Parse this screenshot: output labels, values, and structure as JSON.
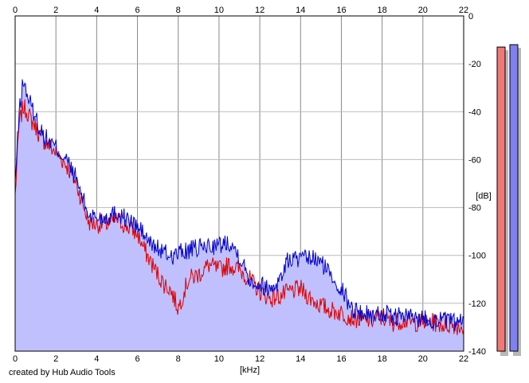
{
  "footer": {
    "credit": "created by Hub Audio Tools"
  },
  "chart_data": {
    "type": "area",
    "xlabel": "[kHz]",
    "ylabel": "[dB]",
    "xlim": [
      0,
      22
    ],
    "ylim": [
      -140,
      0
    ],
    "x_ticks": [
      0,
      2,
      4,
      6,
      8,
      10,
      12,
      14,
      16,
      18,
      20,
      22
    ],
    "y_ticks": [
      0,
      -20,
      -40,
      -60,
      -80,
      -100,
      -120,
      -140
    ],
    "grid": true,
    "colors": {
      "area_fill": "#c0c0ff",
      "red_line": "#e00000",
      "blue_line": "#0000cc",
      "grid": "#bbbbbb",
      "grid_major": "#888888",
      "meter_red": "#f07878",
      "meter_blue": "#8080f0"
    },
    "series": [
      {
        "color": "red",
        "x": [
          0,
          0.2,
          0.4,
          0.6,
          0.8,
          1,
          1.2,
          1.5,
          2,
          2.5,
          3,
          3.3,
          3.6,
          4,
          4.5,
          5,
          5.5,
          6,
          6.3,
          6.6,
          7,
          7.3,
          7.6,
          7.8,
          8,
          8.5,
          9,
          9.5,
          10,
          10.5,
          11,
          11.5,
          12,
          12.5,
          13,
          13.5,
          14,
          14.5,
          15,
          15.5,
          16,
          16.5,
          17,
          17.5,
          18,
          18.5,
          19,
          19.5,
          20,
          20.5,
          21,
          21.5,
          22
        ],
        "y": [
          -75,
          -45,
          -38,
          -40,
          -44,
          -46,
          -50,
          -53,
          -57,
          -62,
          -70,
          -78,
          -86,
          -87,
          -87,
          -85,
          -88,
          -91,
          -97,
          -102,
          -108,
          -112,
          -114,
          -118,
          -122,
          -110,
          -108,
          -104,
          -106,
          -104,
          -106,
          -110,
          -115,
          -118,
          -117,
          -115,
          -114,
          -118,
          -121,
          -123,
          -124,
          -126,
          -127,
          -127,
          -126,
          -128,
          -127,
          -128,
          -128,
          -128,
          -129,
          -129,
          -130
        ]
      },
      {
        "color": "blue",
        "x": [
          0,
          0.2,
          0.4,
          0.6,
          0.8,
          1,
          1.2,
          1.5,
          2,
          2.5,
          3,
          3.3,
          3.6,
          4,
          4.5,
          5,
          5.5,
          6,
          6.3,
          6.6,
          7,
          7.3,
          7.6,
          7.8,
          8,
          8.5,
          9,
          9.5,
          10,
          10.5,
          11,
          11.5,
          12,
          12.5,
          13,
          13.3,
          13.6,
          14,
          14.5,
          15,
          15.5,
          16,
          16.5,
          17,
          17.5,
          18,
          18.5,
          19,
          19.5,
          20,
          20.5,
          21,
          21.5,
          22
        ],
        "y": [
          -70,
          -40,
          -27,
          -33,
          -38,
          -42,
          -47,
          -51,
          -55,
          -60,
          -68,
          -76,
          -83,
          -84,
          -84,
          -82,
          -85,
          -88,
          -91,
          -95,
          -97,
          -99,
          -100,
          -100,
          -99,
          -98,
          -97,
          -96,
          -96,
          -94,
          -100,
          -110,
          -112,
          -114,
          -110,
          -103,
          -101,
          -102,
          -101,
          -103,
          -108,
          -114,
          -122,
          -124,
          -125,
          -124,
          -126,
          -125,
          -126,
          -126,
          -127,
          -127,
          -128,
          -128
        ]
      }
    ],
    "meters": [
      {
        "color": "red",
        "top_db": -13
      },
      {
        "color": "blue",
        "top_db": -12
      }
    ]
  }
}
